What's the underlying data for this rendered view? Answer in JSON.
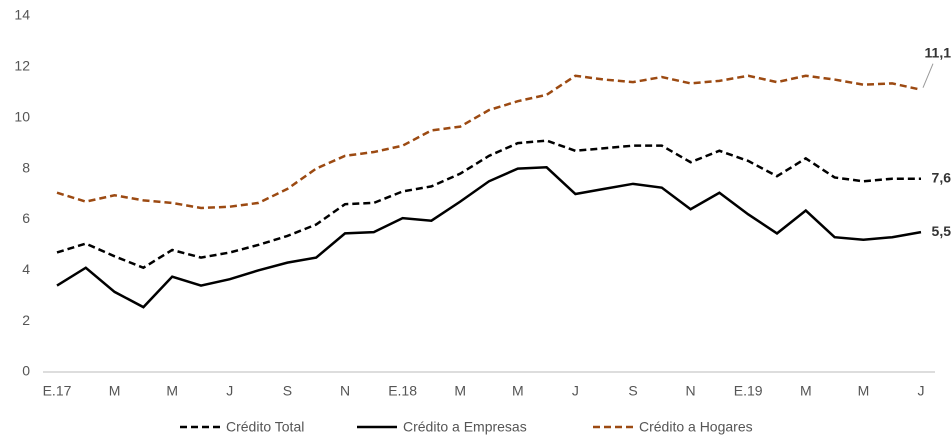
{
  "chart_data": {
    "type": "line",
    "categories": [
      "E.17",
      null,
      "M",
      null,
      "M",
      null,
      "J",
      null,
      "S",
      null,
      "N",
      null,
      "E.18",
      null,
      "M",
      null,
      "M",
      null,
      "J",
      null,
      "S",
      null,
      "N",
      null,
      "E.19",
      null,
      "M",
      null,
      "M",
      null,
      "J"
    ],
    "series": [
      {
        "name": "Crédito Total",
        "color": "#000000",
        "dash": true,
        "values": [
          4.7,
          5.05,
          4.55,
          4.1,
          4.8,
          4.5,
          4.7,
          5.0,
          5.35,
          5.8,
          6.6,
          6.65,
          7.1,
          7.3,
          7.8,
          8.5,
          9.0,
          9.1,
          8.7,
          8.8,
          8.9,
          8.9,
          8.25,
          8.7,
          8.3,
          7.7,
          8.4,
          7.65,
          7.5,
          7.6,
          7.6
        ],
        "value_labels": [
          null,
          null,
          null,
          null,
          null,
          null,
          null,
          null,
          null,
          null,
          null,
          null,
          null,
          null,
          null,
          null,
          null,
          null,
          null,
          null,
          null,
          null,
          null,
          null,
          null,
          null,
          null,
          null,
          null,
          null,
          "7,6"
        ]
      },
      {
        "name": "Crédito a Empresas",
        "color": "#000000",
        "dash": false,
        "values": [
          3.4,
          4.1,
          3.15,
          2.55,
          3.75,
          3.4,
          3.65,
          4.0,
          4.3,
          4.5,
          5.45,
          5.5,
          6.05,
          5.95,
          6.7,
          7.5,
          8.0,
          8.05,
          7.0,
          7.2,
          7.4,
          7.25,
          6.4,
          7.05,
          6.2,
          5.45,
          6.35,
          5.3,
          5.2,
          5.3,
          5.5
        ],
        "value_labels": [
          null,
          null,
          null,
          null,
          null,
          null,
          null,
          null,
          null,
          null,
          null,
          null,
          null,
          null,
          null,
          null,
          null,
          null,
          null,
          null,
          null,
          null,
          null,
          null,
          null,
          null,
          null,
          null,
          null,
          null,
          "5,5"
        ]
      },
      {
        "name": "Crédito a Hogares",
        "color": "#9c4a12",
        "dash": true,
        "values": [
          7.05,
          6.7,
          6.95,
          6.75,
          6.65,
          6.45,
          6.5,
          6.65,
          7.2,
          8.0,
          8.5,
          8.65,
          8.9,
          9.5,
          9.65,
          10.3,
          10.65,
          10.9,
          11.65,
          11.5,
          11.4,
          11.6,
          11.35,
          11.45,
          11.65,
          11.4,
          11.65,
          11.5,
          11.3,
          11.35,
          11.1
        ],
        "value_labels": [
          null,
          null,
          null,
          null,
          null,
          null,
          null,
          null,
          null,
          null,
          null,
          null,
          null,
          null,
          null,
          null,
          null,
          null,
          null,
          null,
          null,
          null,
          null,
          null,
          null,
          null,
          null,
          null,
          null,
          null,
          "11,1"
        ]
      }
    ],
    "ylim": [
      0,
      14
    ],
    "yticks": [
      0,
      2,
      4,
      6,
      8,
      10,
      12,
      14
    ],
    "grid": false,
    "legend": "bottom"
  }
}
